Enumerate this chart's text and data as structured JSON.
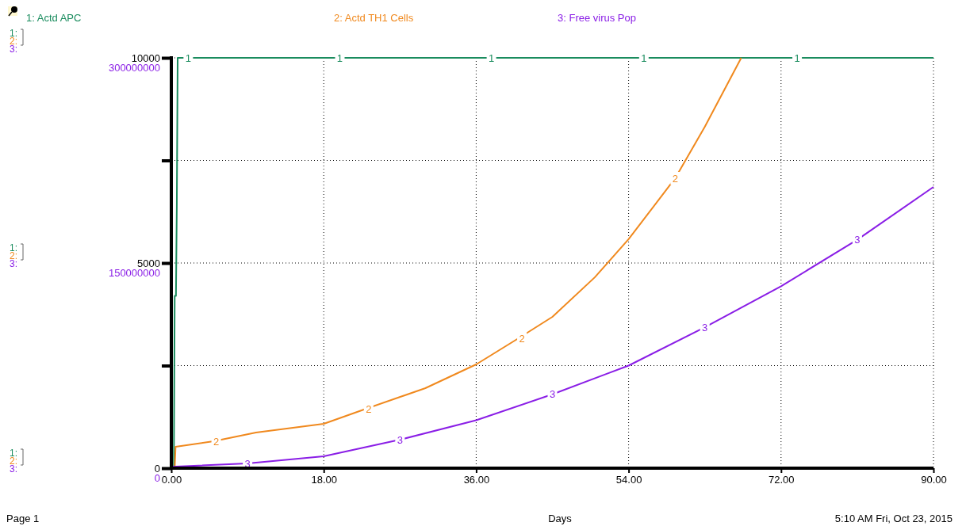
{
  "chart_data": {
    "type": "line",
    "xlabel": "Days",
    "legend": "top",
    "grid": true,
    "xlim": [
      0,
      90
    ],
    "xticks": [
      {
        "value": 0,
        "label": "0.00"
      },
      {
        "value": 18,
        "label": "18.00"
      },
      {
        "value": 36,
        "label": "36.00"
      },
      {
        "value": 54,
        "label": "54.00"
      },
      {
        "value": 72,
        "label": "72.00"
      },
      {
        "value": 90,
        "label": "90.00"
      }
    ],
    "ylim": [
      0,
      10000
    ],
    "yticks": [
      0,
      {
        "value": 2500,
        "label": null
      },
      5000,
      {
        "value": 7500,
        "label": null
      },
      10000
    ],
    "y2lim": [
      0,
      300000000
    ],
    "y2ticks": [
      0,
      150000000,
      300000000
    ],
    "series": [
      {
        "name": "1: Actd APC",
        "color": "#1a8c5e",
        "x": [
          0,
          0.3,
          0.4,
          0.55,
          0.65,
          0.75,
          90
        ],
        "values": [
          0,
          0,
          4200,
          4200,
          6400,
          10000,
          10000
        ]
      },
      {
        "name": "2: Actd TH1  Cells",
        "color": "#f0891e",
        "x": [
          0,
          0.4,
          0.5,
          5,
          10,
          18,
          23,
          30,
          36,
          41,
          45,
          50,
          54,
          59.5,
          63,
          67.3
        ],
        "values": [
          0,
          0,
          521,
          656,
          869,
          1081,
          1448,
          1950,
          2529,
          3166,
          3687,
          4650,
          5580,
          7066,
          8320,
          10000
        ]
      },
      {
        "name": "3: Free virus  Pop",
        "color": "#8a1ee6",
        "axis": "y2",
        "x": [
          0,
          9,
          18,
          27,
          36,
          45,
          54,
          63,
          72,
          81,
          90
        ],
        "values": [
          1000000,
          3500000,
          8700000,
          20800000,
          35000000,
          54000000,
          75000000,
          103000000,
          133000000,
          167000000,
          205600000
        ]
      }
    ],
    "annotations": [
      {
        "text": "1",
        "x": 2,
        "y": 10000
      },
      {
        "text": "1",
        "x": 19.9,
        "y": 10000
      },
      {
        "text": "1",
        "x": 37.8,
        "y": 10000
      },
      {
        "text": "1",
        "x": 55.8,
        "y": 10000
      },
      {
        "text": "1",
        "x": 73.9,
        "y": 10000
      },
      {
        "text": "2",
        "x": 5.3,
        "y": 656
      },
      {
        "text": "2",
        "x": 23.3,
        "y": 1448
      },
      {
        "text": "2",
        "x": 41.4,
        "y": 3166
      },
      {
        "text": "2",
        "x": 59.5,
        "y": 7066
      },
      "Page 1",
      "5:10 AM  Fri, Oct 23, 2015",
      "1:",
      "2:",
      "3:",
      "1:",
      "2:",
      "3:",
      "1:",
      "2:",
      "3:",
      "3",
      "3",
      "3",
      "3",
      "3"
    ]
  }
}
